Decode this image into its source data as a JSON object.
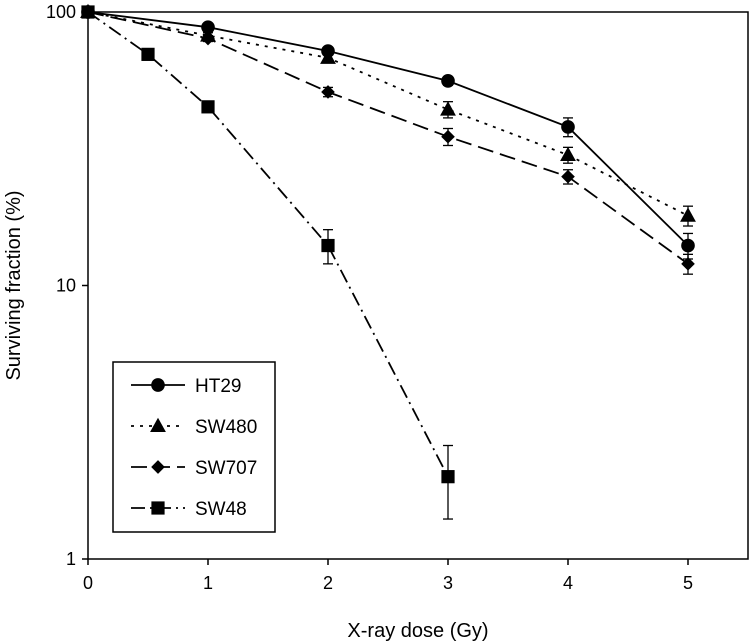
{
  "chart_data": {
    "type": "line",
    "xlabel": "X-ray dose (Gy)",
    "ylabel": "Surviving fraction (%)",
    "xlim": [
      0,
      5.5
    ],
    "ylim": [
      1,
      100
    ],
    "yscale": "log",
    "grid": false,
    "legend_position": "bottom-left",
    "x_ticks": [
      "0",
      "1",
      "2",
      "3",
      "4",
      "5"
    ],
    "y_ticks": [
      "1",
      "10",
      "100"
    ],
    "series": [
      {
        "name": "HT29",
        "marker": "circle",
        "line_style": "solid",
        "x": [
          0,
          1,
          2,
          3,
          4,
          5
        ],
        "y": [
          100,
          88,
          72,
          56,
          38,
          14
        ],
        "err": [
          0,
          2,
          2,
          2,
          3,
          1.5
        ]
      },
      {
        "name": "SW480",
        "marker": "triangle",
        "line_style": "dotted",
        "x": [
          0,
          1,
          2,
          3,
          4,
          5
        ],
        "y": [
          100,
          82,
          68,
          44,
          30,
          18
        ],
        "err": [
          0,
          2,
          2,
          3,
          2,
          1.5
        ]
      },
      {
        "name": "SW707",
        "marker": "diamond",
        "line_style": "dashed",
        "x": [
          0,
          1,
          2,
          3,
          4,
          5
        ],
        "y": [
          100,
          80,
          51,
          35,
          25,
          12
        ],
        "err": [
          0,
          2,
          2,
          2.5,
          1.5,
          1
        ]
      },
      {
        "name": "SW48",
        "marker": "square",
        "line_style": "dash-dot",
        "x": [
          0,
          0.5,
          1,
          2,
          3
        ],
        "y": [
          100,
          70,
          45,
          14,
          2
        ],
        "err": [
          0,
          2,
          2,
          2,
          0.6
        ]
      }
    ]
  }
}
